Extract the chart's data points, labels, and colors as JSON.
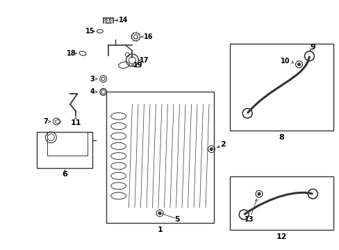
{
  "background_color": "#ffffff",
  "line_color": "#333333",
  "text_color": "#000000",
  "fig_width": 4.89,
  "fig_height": 3.6,
  "dpi": 100
}
